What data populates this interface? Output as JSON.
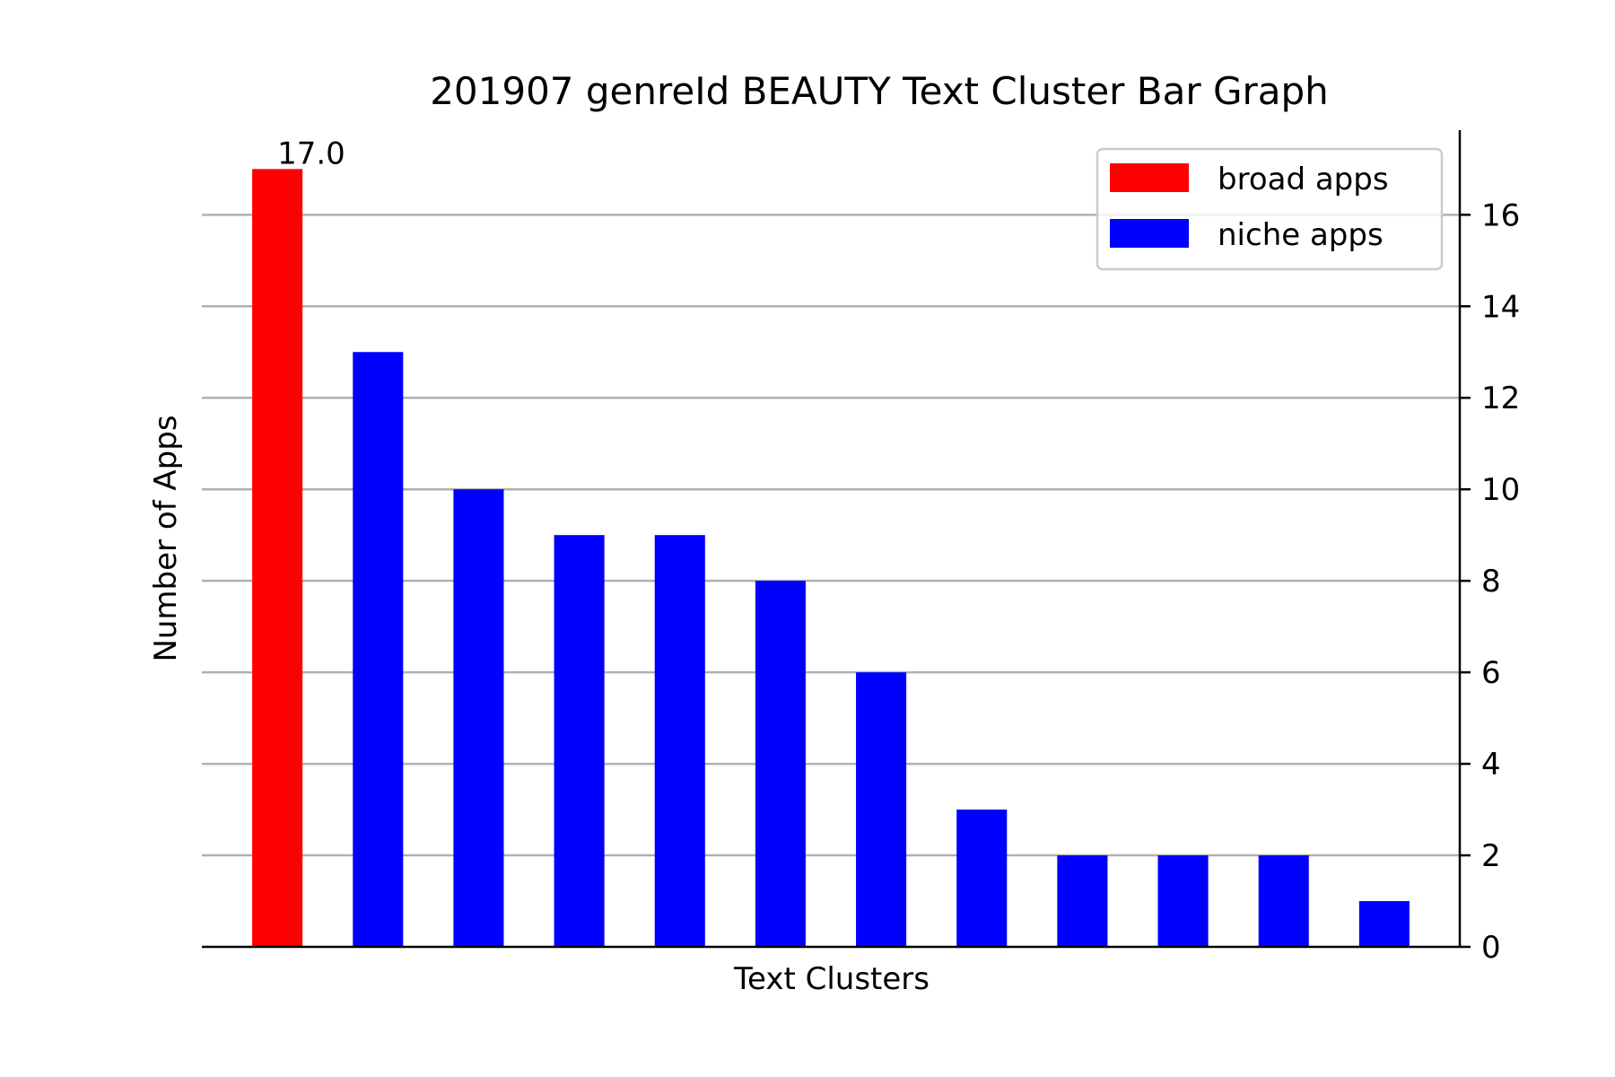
{
  "chart_data": {
    "type": "bar",
    "title": "201907 genreId BEAUTY Text Cluster Bar Graph",
    "xlabel": "Text Clusters",
    "ylabel": "Number of Apps",
    "categories": [
      "",
      "",
      "",
      "",
      "",
      "",
      "",
      "",
      "",
      "",
      "",
      ""
    ],
    "values": [
      17,
      13,
      10,
      9,
      9,
      8,
      6,
      3,
      2,
      2,
      2,
      1
    ],
    "groups": [
      "broad apps",
      "niche apps",
      "niche apps",
      "niche apps",
      "niche apps",
      "niche apps",
      "niche apps",
      "niche apps",
      "niche apps",
      "niche apps",
      "niche apps",
      "niche apps"
    ],
    "series": [
      {
        "name": "broad apps",
        "color": "#ff0000"
      },
      {
        "name": "niche apps",
        "color": "#0000ff"
      }
    ],
    "data_labels": [
      {
        "index": 0,
        "text": "17.0"
      }
    ],
    "ylim": [
      0,
      17.85
    ],
    "yticks": [
      0,
      2,
      4,
      6,
      8,
      10,
      12,
      14,
      16
    ],
    "y_axis_side": "right",
    "grid": "horizontal",
    "grid_color": "#b0b0b0",
    "legend": "top-right"
  }
}
